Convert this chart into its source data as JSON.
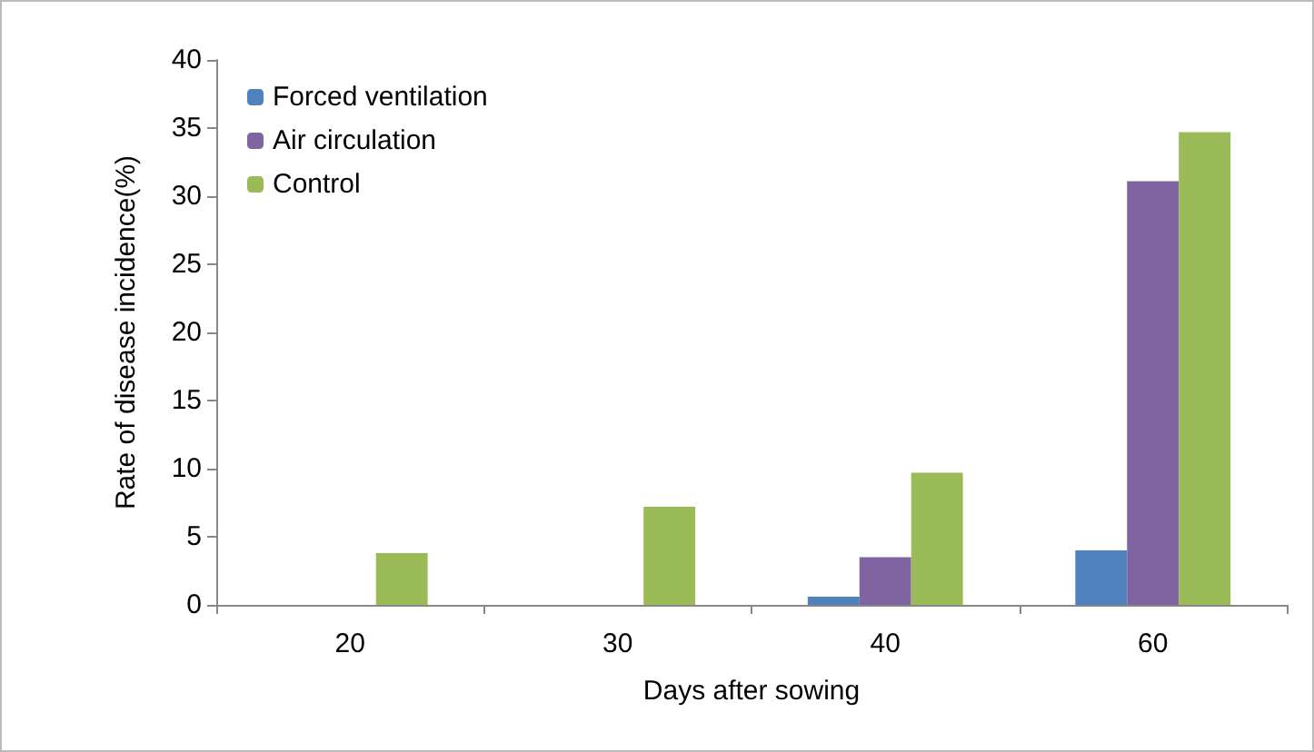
{
  "chart_data": {
    "type": "bar",
    "xlabel": "Days after sowing",
    "ylabel": "Rate of disease incidence(%)",
    "categories": [
      "20",
      "30",
      "40",
      "60"
    ],
    "series": [
      {
        "name": "Forced ventilation",
        "color": "#4f81bd",
        "values": [
          0,
          0,
          0.6,
          4.0
        ]
      },
      {
        "name": "Air circulation",
        "color": "#8064a2",
        "values": [
          0,
          0,
          3.5,
          31.1
        ]
      },
      {
        "name": "Control",
        "color": "#9bbb59",
        "values": [
          3.8,
          7.2,
          9.7,
          34.7
        ]
      }
    ],
    "ylim": [
      0,
      40
    ],
    "yticks": [
      0,
      5,
      10,
      15,
      20,
      25,
      30,
      35,
      40
    ],
    "grid": false,
    "legend": "top left"
  }
}
